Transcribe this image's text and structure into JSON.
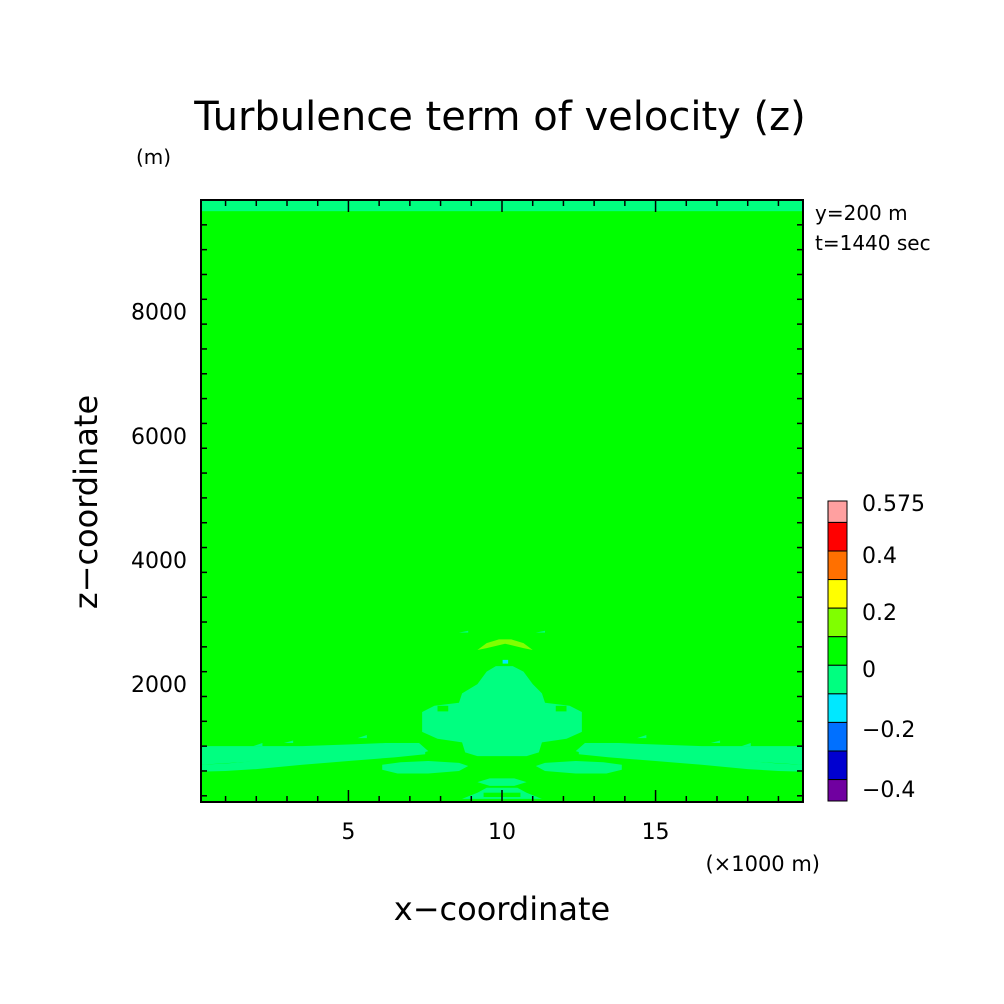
{
  "chart_data": {
    "type": "heatmap",
    "title": "Turbulence term of velocity (z)",
    "y_unit": "(m)",
    "x_unit": "(×1000 m)",
    "xlabel": "x−coordinate",
    "ylabel": "z−coordinate",
    "annotations": [
      "y=200 m",
      "t=1440 sec"
    ],
    "xlim": [
      0.2,
      19.8
    ],
    "ylim": [
      100,
      9800
    ],
    "x_ticks": [
      5,
      10,
      15
    ],
    "x_tick_labels": [
      "5",
      "10",
      "15"
    ],
    "y_ticks": [
      2000,
      4000,
      6000,
      8000
    ],
    "y_tick_labels": [
      "2000",
      "4000",
      "6000",
      "8000"
    ],
    "background_level": "0 to 0.1",
    "regions": [
      {
        "level": "-0.1 to 0",
        "color": "#00ff80",
        "x": [
          0.2,
          19.8
        ],
        "z": [
          9600,
          9800
        ],
        "desc": "top band"
      },
      {
        "level": "-0.1 to 0",
        "color": "#00ff80",
        "x": [
          7.4,
          12.6
        ],
        "z": [
          600,
          2300
        ],
        "desc": "central plume"
      },
      {
        "level": "-0.1 to 0",
        "color": "#00ff80",
        "x": [
          0.2,
          19.8
        ],
        "z": [
          580,
          1000
        ],
        "desc": "low-level band"
      },
      {
        "level": "0.1 to 0.2",
        "color": "#80ff00",
        "x": [
          9.2,
          11.0
        ],
        "z": [
          2500,
          2750
        ],
        "desc": "arc above plume"
      },
      {
        "level": "-0.2 to -0.1",
        "color": "#00e8ff",
        "x": [
          10.0,
          10.2
        ],
        "z": [
          2330,
          2380
        ],
        "desc": "small spot"
      }
    ],
    "colorbar": {
      "levels": [
        {
          "range": "0.5 to 0.575",
          "color": "#ffa0a0"
        },
        {
          "range": "0.4 to 0.5",
          "color": "#ff0000"
        },
        {
          "range": "0.3 to 0.4",
          "color": "#ff7000"
        },
        {
          "range": "0.2 to 0.3",
          "color": "#ffff00"
        },
        {
          "range": "0.1 to 0.2",
          "color": "#80ff00"
        },
        {
          "range": "0 to 0.1",
          "color": "#00ff00"
        },
        {
          "range": "-0.1 to 0",
          "color": "#00ff80"
        },
        {
          "range": "-0.2 to -0.1",
          "color": "#00e8ff"
        },
        {
          "range": "-0.3 to -0.2",
          "color": "#0070ff"
        },
        {
          "range": "-0.4 to -0.3",
          "color": "#0000d0"
        },
        {
          "range": "-0.45 to -0.4",
          "color": "#7000a0"
        }
      ],
      "labels": [
        "0.575",
        "0.4",
        "0.2",
        "0",
        "−0.2",
        "−0.4"
      ]
    },
    "colors": {
      "background_level": "#00ff00",
      "negative_small": "#00ff80",
      "positive_small": "#80ff00",
      "negative_mid": "#00e8ff"
    }
  }
}
